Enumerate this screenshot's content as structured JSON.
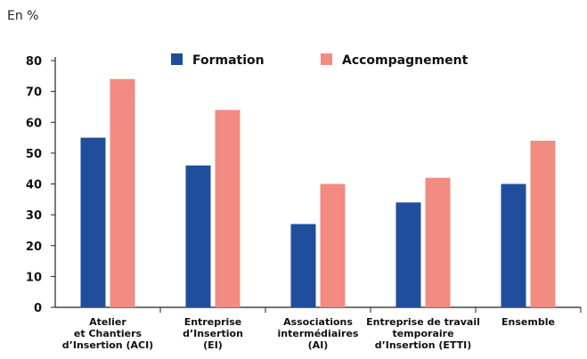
{
  "unit_label": "En %",
  "chart_data": {
    "type": "bar",
    "categories": [
      [
        "Atelier",
        "et Chantiers",
        "d’Insertion (ACI)"
      ],
      [
        "Entreprise",
        "d’Insertion",
        "(EI)"
      ],
      [
        "Associations",
        "intermédiaires",
        "(AI)"
      ],
      [
        "Entreprise de travail",
        "temporaire",
        "d’Insertion (ETTI)"
      ],
      [
        "Ensemble"
      ]
    ],
    "series": [
      {
        "name": "Formation",
        "color": "#1f4e9c",
        "values": [
          55,
          46,
          27,
          34,
          40
        ]
      },
      {
        "name": "Accompagnement",
        "color": "#f28b82",
        "values": [
          74,
          64,
          40,
          42,
          54
        ]
      }
    ],
    "ylim": [
      0,
      80
    ],
    "yticks": [
      0,
      10,
      20,
      30,
      40,
      50,
      60,
      70,
      80
    ],
    "grid": false,
    "legend": "top-center"
  }
}
